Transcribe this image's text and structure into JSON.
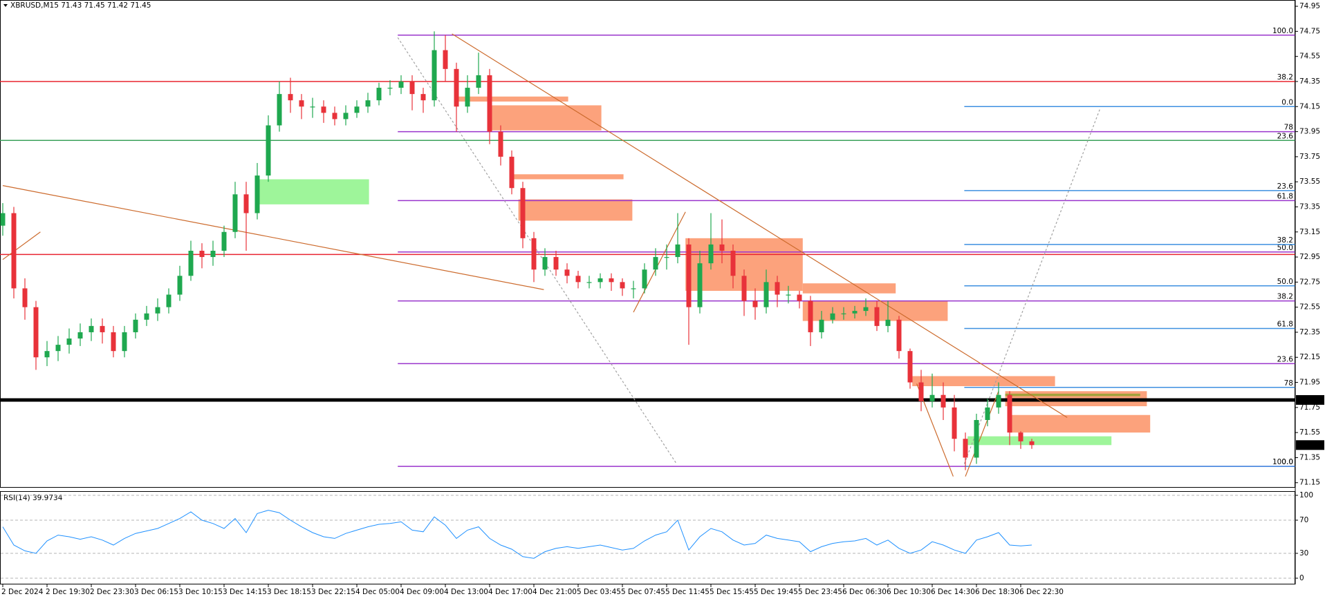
{
  "chart_data": [
    {
      "type": "candlestick",
      "title": "XBRUSD,M15  71.43 71.45 71.42 71.45",
      "categories": [
        "2 Dec 2024",
        null,
        null,
        null,
        "2 Dec 19:30",
        null,
        null,
        null,
        "2 Dec 23:30",
        null,
        null,
        null,
        "3 Dec 06:15",
        null,
        null,
        null,
        "3 Dec 10:15",
        null,
        null,
        null,
        "3 Dec 14:15",
        null,
        null,
        null,
        "3 Dec 18:15",
        null,
        null,
        null,
        "3 Dec 22:15",
        null,
        null,
        null,
        "4 Dec 05:00",
        null,
        null,
        null,
        "4 Dec 09:00",
        null,
        null,
        null,
        "4 Dec 13:00",
        null,
        null,
        null,
        "4 Dec 17:00",
        null,
        null,
        null,
        "4 Dec 21:00",
        null,
        null,
        null,
        "5 Dec 03:45",
        null,
        null,
        null,
        "5 Dec 07:45",
        null,
        null,
        null,
        "5 Dec 11:45",
        null,
        null,
        null,
        "5 Dec 15:45",
        null,
        null,
        null,
        "5 Dec 19:45",
        null,
        null,
        null,
        "5 Dec 23:45",
        null,
        null,
        null,
        "6 Dec 06:30",
        null,
        null,
        null,
        "6 Dec 10:30",
        null,
        null,
        null,
        "6 Dec 14:30",
        null,
        null,
        null,
        "6 Dec 18:30",
        null,
        null,
        null,
        "6 Dec 22:30",
        null
      ],
      "open": [
        73.2,
        73.3,
        72.7,
        72.55,
        72.15,
        72.2,
        72.25,
        72.3,
        72.35,
        72.4,
        72.35,
        72.2,
        72.35,
        72.45,
        72.5,
        72.55,
        72.65,
        72.8,
        73.0,
        72.95,
        73.0,
        73.15,
        73.45,
        73.3,
        73.6,
        74.0,
        74.25,
        74.2,
        74.15,
        74.15,
        74.1,
        74.05,
        74.1,
        74.15,
        74.2,
        74.3,
        74.3,
        74.35,
        74.25,
        74.2,
        74.6,
        74.45,
        74.15,
        74.3,
        74.4,
        73.95,
        73.75,
        73.5,
        73.1,
        72.85,
        72.95,
        72.85,
        72.8,
        72.75,
        72.75,
        72.78,
        72.75,
        72.7,
        72.7,
        72.85,
        72.95,
        72.95,
        73.05,
        72.55,
        72.9,
        73.05,
        73.0,
        72.8,
        72.6,
        72.55,
        72.75,
        72.65,
        72.65,
        72.6,
        72.35,
        72.45,
        72.5,
        72.5,
        72.52,
        72.55,
        72.4,
        72.45,
        72.2,
        71.95,
        71.8,
        71.85,
        71.75,
        71.5,
        71.35,
        71.65,
        71.75,
        71.85,
        71.55,
        71.48
      ],
      "high": [
        73.38,
        73.35,
        72.78,
        72.6,
        72.28,
        72.32,
        72.38,
        72.42,
        72.46,
        72.46,
        72.4,
        72.4,
        72.5,
        72.56,
        72.62,
        72.7,
        72.88,
        73.08,
        73.06,
        73.08,
        73.2,
        73.55,
        73.55,
        73.7,
        74.08,
        74.35,
        74.38,
        74.25,
        74.22,
        74.2,
        74.15,
        74.16,
        74.2,
        74.26,
        74.34,
        74.36,
        74.4,
        74.4,
        74.3,
        74.75,
        74.72,
        74.5,
        74.4,
        74.58,
        74.45,
        74.0,
        73.8,
        73.55,
        73.15,
        73.02,
        73.0,
        72.9,
        72.84,
        72.8,
        72.82,
        72.82,
        72.78,
        72.76,
        72.9,
        73.02,
        73.05,
        73.3,
        73.1,
        73.0,
        73.3,
        73.25,
        73.05,
        72.85,
        72.7,
        72.85,
        72.8,
        72.72,
        72.68,
        72.64,
        72.52,
        72.55,
        72.55,
        72.56,
        72.62,
        72.6,
        72.6,
        72.48,
        72.22,
        72.05,
        72.02,
        71.95,
        71.85,
        71.55,
        71.7,
        71.82,
        71.95,
        71.88,
        71.56,
        71.5
      ],
      "low": [
        73.12,
        72.62,
        72.45,
        72.05,
        72.08,
        72.12,
        72.18,
        72.24,
        72.28,
        72.26,
        72.15,
        72.15,
        72.3,
        72.4,
        72.44,
        72.5,
        72.6,
        72.76,
        72.86,
        72.88,
        72.95,
        73.1,
        73.0,
        73.25,
        73.55,
        73.95,
        74.1,
        74.05,
        74.06,
        74.02,
        74.0,
        74.0,
        74.06,
        74.1,
        74.16,
        74.24,
        74.25,
        74.12,
        74.1,
        74.15,
        74.35,
        73.95,
        74.1,
        74.25,
        73.85,
        73.68,
        73.45,
        73.02,
        72.75,
        72.8,
        72.8,
        72.74,
        72.7,
        72.7,
        72.7,
        72.68,
        72.64,
        72.62,
        72.66,
        72.8,
        72.85,
        72.9,
        72.25,
        72.5,
        72.85,
        72.9,
        72.7,
        72.48,
        72.45,
        72.5,
        72.55,
        72.58,
        72.54,
        72.24,
        72.3,
        72.42,
        72.45,
        72.46,
        72.48,
        72.36,
        72.35,
        72.14,
        71.9,
        71.72,
        71.75,
        71.65,
        71.4,
        71.25,
        71.3,
        71.6,
        71.7,
        71.45,
        71.42,
        71.42
      ],
      "close": [
        73.3,
        72.7,
        72.55,
        72.15,
        72.2,
        72.25,
        72.3,
        72.35,
        72.4,
        72.35,
        72.2,
        72.35,
        72.45,
        72.5,
        72.55,
        72.65,
        72.8,
        73.0,
        72.95,
        73.0,
        73.15,
        73.45,
        73.3,
        73.6,
        74.0,
        74.25,
        74.2,
        74.15,
        74.15,
        74.1,
        74.05,
        74.1,
        74.15,
        74.2,
        74.3,
        74.3,
        74.35,
        74.25,
        74.2,
        74.6,
        74.45,
        74.15,
        74.3,
        74.4,
        73.95,
        73.75,
        73.5,
        73.1,
        72.85,
        72.95,
        72.85,
        72.8,
        72.75,
        72.75,
        72.78,
        72.75,
        72.7,
        72.7,
        72.85,
        72.95,
        72.95,
        73.05,
        72.55,
        72.9,
        73.05,
        73.0,
        72.8,
        72.6,
        72.55,
        72.75,
        72.65,
        72.65,
        72.6,
        72.35,
        72.45,
        72.5,
        72.5,
        72.52,
        72.55,
        72.4,
        72.45,
        72.2,
        71.95,
        71.8,
        71.85,
        71.75,
        71.5,
        71.35,
        71.65,
        71.75,
        71.85,
        71.55,
        71.48,
        71.45
      ],
      "up_color": "#1fa84f",
      "down_color": "#e8323a",
      "ylim": [
        71.11,
        75.0
      ],
      "yticks": [
        74.95,
        74.75,
        74.55,
        74.35,
        74.15,
        73.95,
        73.75,
        73.55,
        73.35,
        73.15,
        72.95,
        72.75,
        72.55,
        72.35,
        72.15,
        71.95,
        71.75,
        71.55,
        71.35,
        71.15
      ],
      "last_price": 71.45,
      "hlines": [
        {
          "price": 74.35,
          "color": "#e8232f",
          "level": "38.2"
        },
        {
          "price": 73.88,
          "color": "#3aa05a",
          "level": "23.6"
        },
        {
          "price": 72.97,
          "color": "#e8232f"
        },
        {
          "price": 71.81,
          "color": "#000000",
          "bold": true
        }
      ],
      "fibs": [
        {
          "x0": 35.7,
          "color": "#9933cc",
          "levels": [
            {
              "level": "100.0",
              "price": 74.72
            },
            {
              "level": "78",
              "price": 73.95
            },
            {
              "level": "61.8",
              "price": 73.4
            },
            {
              "level": "50.0",
              "price": 72.99
            },
            {
              "level": "38.2",
              "price": 72.6
            },
            {
              "level": "23.6",
              "price": 72.1
            },
            {
              "level": "0.0",
              "price": 71.28
            }
          ]
        },
        {
          "x0": 86.9,
          "color": "#3d8fe0",
          "levels": [
            {
              "level": "0.0",
              "price": 74.15
            },
            {
              "level": "23.6",
              "price": 73.48
            },
            {
              "level": "38.2",
              "price": 73.05
            },
            {
              "level": "50.0",
              "price": 72.72
            },
            {
              "level": "61.8",
              "price": 72.38
            },
            {
              "level": "78",
              "price": 71.91
            },
            {
              "level": "100.0",
              "price": 71.28
            }
          ]
        }
      ],
      "zones": [
        {
          "x0": 40.9,
          "x1": 51.1,
          "top": 74.23,
          "bottom": 74.19,
          "color": "#fca27c"
        },
        {
          "x0": 44.0,
          "x1": 54.1,
          "top": 74.16,
          "bottom": 73.96,
          "color": "#fca27c"
        },
        {
          "x0": 45.9,
          "x1": 56.1,
          "top": 73.61,
          "bottom": 73.57,
          "color": "#fca27c"
        },
        {
          "x0": 46.6,
          "x1": 56.9,
          "top": 73.41,
          "bottom": 73.24,
          "color": "#fca27c"
        },
        {
          "x0": 61.7,
          "x1": 72.3,
          "top": 73.1,
          "bottom": 72.68,
          "color": "#fca27c"
        },
        {
          "x0": 72.3,
          "x1": 80.7,
          "top": 72.74,
          "bottom": 72.66,
          "color": "#fca27c"
        },
        {
          "x0": 72.3,
          "x1": 85.4,
          "top": 72.6,
          "bottom": 72.44,
          "color": "#fca27c"
        },
        {
          "x0": 82.2,
          "x1": 95.1,
          "top": 72.0,
          "bottom": 71.92,
          "color": "#fca27c"
        },
        {
          "x0": 90.6,
          "x1": 103.4,
          "top": 71.88,
          "bottom": 71.76,
          "color": "#fca27c"
        },
        {
          "x0": 91.0,
          "x1": 103.7,
          "top": 71.69,
          "bottom": 71.55,
          "color": "#fca27c"
        },
        {
          "x0": 23.0,
          "x1": 33.1,
          "top": 73.57,
          "bottom": 73.37,
          "color": "#9ef59a"
        },
        {
          "x0": 87.2,
          "x1": 100.2,
          "top": 71.52,
          "bottom": 71.45,
          "color": "#9ef59a"
        },
        {
          "x0": 90.6,
          "x1": 102.8,
          "top": 71.86,
          "bottom": 71.84,
          "color": "#a3a23c"
        }
      ],
      "trendlines": [
        {
          "x0": 0,
          "p0": 73.52,
          "x1": 48.9,
          "p1": 72.69,
          "color": "#cc6a2c"
        },
        {
          "x0": 40.6,
          "p0": 74.73,
          "x1": 96.2,
          "p1": 71.67,
          "color": "#cc6a2c"
        },
        {
          "x0": 57.0,
          "p0": 72.51,
          "x1": 61.7,
          "p1": 73.31,
          "color": "#cc6a2c"
        },
        {
          "x0": 0,
          "p0": 72.93,
          "x1": 3.4,
          "p1": 73.15,
          "color": "#cc6a2c"
        },
        {
          "x0": 82.6,
          "p0": 71.94,
          "x1": 85.9,
          "p1": 71.2,
          "color": "#cc6a2c"
        },
        {
          "x0": 87.0,
          "p0": 71.2,
          "x1": 90.0,
          "p1": 71.88,
          "color": "#cc6a2c"
        },
        {
          "x0": 35.7,
          "p0": 74.7,
          "x1": 60.9,
          "p1": 71.3,
          "color": "#a0a0a0",
          "dashed": true
        },
        {
          "x0": 86.9,
          "p0": 71.3,
          "x1": 99.2,
          "p1": 74.14,
          "color": "#a0a0a0",
          "dashed": true
        }
      ]
    },
    {
      "type": "line",
      "title": "RSI(14) 39.9734",
      "values": [
        62,
        40,
        33,
        30,
        45,
        52,
        50,
        47,
        50,
        46,
        40,
        48,
        54,
        57,
        60,
        66,
        72,
        80,
        70,
        66,
        60,
        72,
        55,
        78,
        82,
        79,
        70,
        62,
        55,
        50,
        48,
        54,
        58,
        62,
        65,
        66,
        68,
        58,
        56,
        74,
        64,
        48,
        58,
        62,
        48,
        40,
        35,
        26,
        24,
        32,
        36,
        38,
        36,
        38,
        40,
        37,
        34,
        36,
        45,
        52,
        56,
        70,
        34,
        50,
        60,
        56,
        46,
        40,
        42,
        52,
        48,
        46,
        44,
        32,
        38,
        42,
        44,
        45,
        48,
        40,
        46,
        36,
        30,
        34,
        44,
        40,
        34,
        30,
        46,
        50,
        55,
        40,
        39,
        40
      ],
      "color": "#1e90ff",
      "ylim": [
        -7.5,
        105
      ],
      "yticks": [
        100,
        70,
        30,
        0
      ]
    }
  ]
}
